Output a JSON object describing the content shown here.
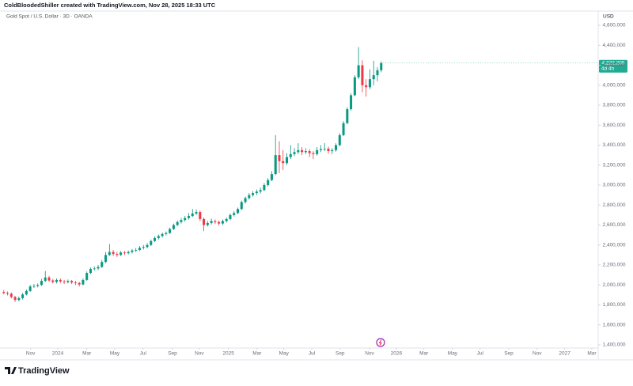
{
  "chart_data": {
    "type": "candlestick",
    "header": "ColdBloodedShiller created with TradingView.com, Nov 28, 2025 18:33 UTC",
    "title": "Gold Spot / U.S. Dollar · 3D · OANDA",
    "y_unit": "USD",
    "logo": "TradingView",
    "price_tag": {
      "value": 4222205,
      "label": "4,222,205"
    },
    "price_tag_note": "4d 4h",
    "up_color": "#089981",
    "down_color": "#f23645",
    "open": [
      1930000,
      1920000,
      1912000,
      1880000,
      1850000,
      1868000,
      1905000,
      1940000,
      1985000,
      1990000,
      2000000,
      2040000,
      2075000,
      2045000,
      2030000,
      2050000,
      2035000,
      2028000,
      2040000,
      2025000,
      2020000,
      2005000,
      2050000,
      2120000,
      2160000,
      2165000,
      2180000,
      2230000,
      2300000,
      2330000,
      2310000,
      2300000,
      2325000,
      2318000,
      2330000,
      2345000,
      2350000,
      2372000,
      2380000,
      2400000,
      2440000,
      2470000,
      2490000,
      2510000,
      2520000,
      2560000,
      2600000,
      2630000,
      2650000,
      2670000,
      2690000,
      2715000,
      2730000,
      2660000,
      2600000,
      2620000,
      2640000,
      2630000,
      2615000,
      2640000,
      2660000,
      2700000,
      2720000,
      2760000,
      2830000,
      2870000,
      2900000,
      2920000,
      2935000,
      2950000,
      3000000,
      3050000,
      3110000,
      3300000,
      3240000,
      3220000,
      3280000,
      3310000,
      3330000,
      3350000,
      3330000,
      3340000,
      3320000,
      3310000,
      3350000,
      3360000,
      3365000,
      3340000,
      3350000,
      3400000,
      3500000,
      3620000,
      3760000,
      3900000,
      4080000,
      4200000,
      4000000,
      3980000,
      4060000,
      4100000,
      4150000
    ],
    "high": [
      1950000,
      1935000,
      1925000,
      1890000,
      1885000,
      1920000,
      1955000,
      2000000,
      2010000,
      2015000,
      2060000,
      2140000,
      2090000,
      2060000,
      2065000,
      2065000,
      2050000,
      2055000,
      2050000,
      2040000,
      2030000,
      2065000,
      2135000,
      2175000,
      2185000,
      2200000,
      2250000,
      2330000,
      2410000,
      2350000,
      2330000,
      2340000,
      2340000,
      2345000,
      2360000,
      2370000,
      2390000,
      2400000,
      2420000,
      2455000,
      2485000,
      2505000,
      2525000,
      2535000,
      2575000,
      2615000,
      2645000,
      2670000,
      2690000,
      2720000,
      2760000,
      2755000,
      2745000,
      2675000,
      2640000,
      2665000,
      2655000,
      2645000,
      2655000,
      2675000,
      2715000,
      2740000,
      2775000,
      2845000,
      2885000,
      2920000,
      2940000,
      2955000,
      2975000,
      3020000,
      3070000,
      3140000,
      3500000,
      3440000,
      3350000,
      3320000,
      3400000,
      3370000,
      3420000,
      3380000,
      3370000,
      3360000,
      3340000,
      3380000,
      3400000,
      3420000,
      3385000,
      3370000,
      3420000,
      3520000,
      3640000,
      3780000,
      3920000,
      4100000,
      4381000,
      4250000,
      4060000,
      4160000,
      4245000,
      4180000,
      4240000
    ],
    "low": [
      1905000,
      1895000,
      1865000,
      1830000,
      1835000,
      1855000,
      1895000,
      1930000,
      1970000,
      1975000,
      1990000,
      2030000,
      2030000,
      2015000,
      2015000,
      2020000,
      2010000,
      2015000,
      2010000,
      2000000,
      1985000,
      1995000,
      2040000,
      2110000,
      2145000,
      2150000,
      2170000,
      2220000,
      2290000,
      2290000,
      2280000,
      2290000,
      2300000,
      2305000,
      2315000,
      2330000,
      2340000,
      2355000,
      2365000,
      2390000,
      2430000,
      2455000,
      2475000,
      2495000,
      2510000,
      2550000,
      2590000,
      2615000,
      2635000,
      2655000,
      2680000,
      2700000,
      2640000,
      2540000,
      2585000,
      2605000,
      2610000,
      2595000,
      2600000,
      2625000,
      2650000,
      2685000,
      2710000,
      2750000,
      2815000,
      2855000,
      2885000,
      2900000,
      2915000,
      2940000,
      2985000,
      3040000,
      3100000,
      3120000,
      3150000,
      3200000,
      3260000,
      3290000,
      3310000,
      3300000,
      3310000,
      3280000,
      3260000,
      3295000,
      3330000,
      3340000,
      3315000,
      3310000,
      3335000,
      3390000,
      3490000,
      3610000,
      3745000,
      3890000,
      4060000,
      3930000,
      3886000,
      3960000,
      4000000,
      4040000,
      4130000
    ],
    "close": [
      1920000,
      1912000,
      1880000,
      1850000,
      1868000,
      1905000,
      1940000,
      1985000,
      1990000,
      2000000,
      2040000,
      2075000,
      2045000,
      2030000,
      2050000,
      2035000,
      2028000,
      2040000,
      2025000,
      2020000,
      2005000,
      2050000,
      2120000,
      2160000,
      2165000,
      2180000,
      2230000,
      2300000,
      2330000,
      2310000,
      2300000,
      2325000,
      2318000,
      2330000,
      2345000,
      2350000,
      2372000,
      2380000,
      2400000,
      2440000,
      2470000,
      2490000,
      2510000,
      2520000,
      2560000,
      2600000,
      2630000,
      2650000,
      2670000,
      2690000,
      2715000,
      2730000,
      2660000,
      2600000,
      2620000,
      2640000,
      2630000,
      2615000,
      2640000,
      2660000,
      2700000,
      2720000,
      2760000,
      2830000,
      2870000,
      2900000,
      2920000,
      2935000,
      2950000,
      3000000,
      3050000,
      3110000,
      3300000,
      3240000,
      3220000,
      3280000,
      3310000,
      3330000,
      3350000,
      3330000,
      3340000,
      3320000,
      3310000,
      3350000,
      3360000,
      3365000,
      3340000,
      3350000,
      3400000,
      3500000,
      3620000,
      3760000,
      3900000,
      4080000,
      4200000,
      4000000,
      3980000,
      4060000,
      4100000,
      4150000,
      4222205
    ],
    "xlim": [
      -1,
      157.7
    ],
    "xticks": [
      {
        "value": 7.1,
        "label": "Nov"
      },
      {
        "value": 14.3,
        "label": "2024"
      },
      {
        "value": 22.0,
        "label": "Mar"
      },
      {
        "value": 29.4,
        "label": "May"
      },
      {
        "value": 36.9,
        "label": "Jul"
      },
      {
        "value": 44.7,
        "label": "Sep"
      },
      {
        "value": 51.8,
        "label": "Nov"
      },
      {
        "value": 59.5,
        "label": "2025"
      },
      {
        "value": 67.1,
        "label": "Mar"
      },
      {
        "value": 74.2,
        "label": "May"
      },
      {
        "value": 81.6,
        "label": "Jul"
      },
      {
        "value": 89.1,
        "label": "Sep"
      },
      {
        "value": 96.9,
        "label": "Nov"
      },
      {
        "value": 104.0,
        "label": "2026"
      },
      {
        "value": 111.3,
        "label": "Mar"
      },
      {
        "value": 118.9,
        "label": "May"
      },
      {
        "value": 126.2,
        "label": "Jul"
      },
      {
        "value": 133.8,
        "label": "Sep"
      },
      {
        "value": 141.3,
        "label": "Nov"
      },
      {
        "value": 148.6,
        "label": "2027"
      },
      {
        "value": 155.8,
        "label": "Mar"
      }
    ],
    "ylim": [
      1400000,
      4600000
    ],
    "yticks": [
      {
        "value": 4600000,
        "label": "4,600,000"
      },
      {
        "value": 4400000,
        "label": "4,400,000"
      },
      {
        "value": 4200000,
        "label": "4,200,000"
      },
      {
        "value": 4000000,
        "label": "4,000,000"
      },
      {
        "value": 3800000,
        "label": "3,800,000"
      },
      {
        "value": 3600000,
        "label": "3,600,000"
      },
      {
        "value": 3400000,
        "label": "3,400,000"
      },
      {
        "value": 3200000,
        "label": "3,200,000"
      },
      {
        "value": 3000000,
        "label": "3,000,000"
      },
      {
        "value": 2800000,
        "label": "2,800,000"
      },
      {
        "value": 2600000,
        "label": "2,600,000"
      },
      {
        "value": 2400000,
        "label": "2,400,000"
      },
      {
        "value": 2200000,
        "label": "2,200,000"
      },
      {
        "value": 2000000,
        "label": "2,000,000"
      },
      {
        "value": 1800000,
        "label": "1,800,000"
      },
      {
        "value": 1600000,
        "label": "1,600,000"
      },
      {
        "value": 1400000,
        "label": "1,400,000"
      }
    ]
  }
}
